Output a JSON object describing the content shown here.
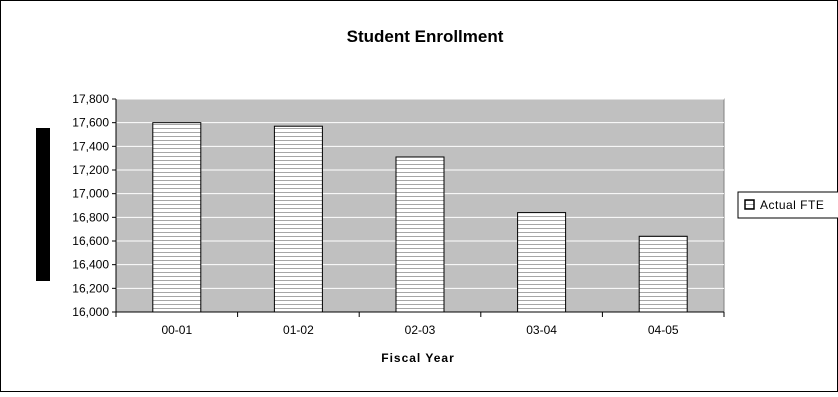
{
  "chart_data": {
    "type": "bar",
    "title": "Student Enrollment",
    "xlabel": "Fiscal Year",
    "ylabel": "",
    "categories": [
      "00-01",
      "01-02",
      "02-03",
      "03-04",
      "04-05"
    ],
    "series": [
      {
        "name": "Actual FTE",
        "values": [
          17600,
          17570,
          17310,
          16840,
          16640
        ]
      }
    ],
    "ylim": [
      16000,
      17800
    ],
    "yticks": [
      16000,
      16200,
      16400,
      16600,
      16800,
      17000,
      17200,
      17400,
      17600,
      17800
    ],
    "ytick_labels": [
      "16,000",
      "16,200",
      "16,400",
      "16,600",
      "16,800",
      "17,000",
      "17,200",
      "17,400",
      "17,600",
      "17,800"
    ],
    "grid": true,
    "legend_position": "right",
    "colors": {
      "plot_background": "#c0c0c0",
      "bar_fill": "#ffffff",
      "bar_stripe": "#a6a6a6",
      "bar_outline": "#000000",
      "gridline": "#ffffff"
    }
  }
}
